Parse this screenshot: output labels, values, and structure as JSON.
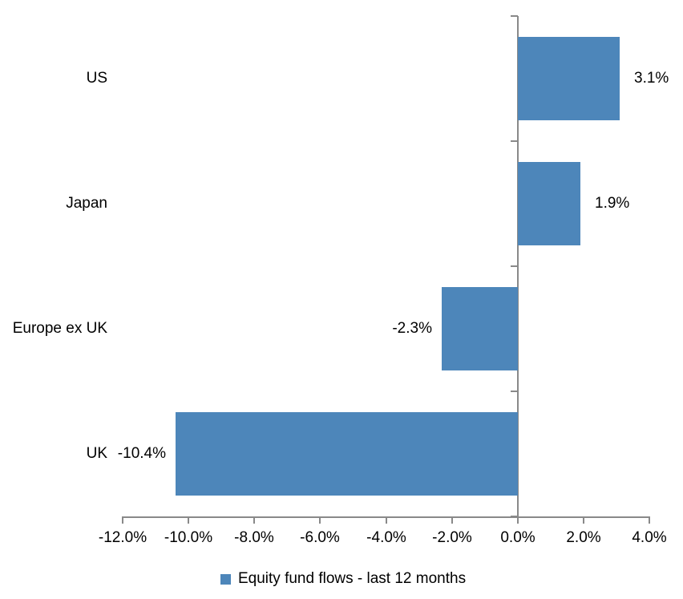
{
  "chart_data": {
    "type": "bar",
    "orientation": "horizontal",
    "title": "",
    "categories": [
      "US",
      "Japan",
      "Europe ex UK",
      "UK"
    ],
    "series": [
      {
        "name": "Equity fund flows - last 12 months",
        "values": [
          3.1,
          1.9,
          -2.3,
          -10.4
        ]
      }
    ],
    "value_labels": [
      "3.1%",
      "1.9%",
      "-2.3%",
      "-10.4%"
    ],
    "xlabel": "",
    "ylabel": "",
    "xlim": [
      -12,
      4
    ],
    "x_ticks": [
      -12,
      -10,
      -8,
      -6,
      -4,
      -2,
      0,
      2,
      4
    ],
    "x_tick_labels": [
      "-12.0%",
      "-10.0%",
      "-8.0%",
      "-6.0%",
      "-4.0%",
      "-2.0%",
      "0.0%",
      "2.0%",
      "4.0%"
    ],
    "grid": false,
    "legend_position": "bottom",
    "legend_label": "Equity fund flows - last 12 months",
    "colors": {
      "bar": "#4d86ba",
      "axis": "#898989",
      "text": "#000000",
      "background": "#ffffff"
    }
  }
}
